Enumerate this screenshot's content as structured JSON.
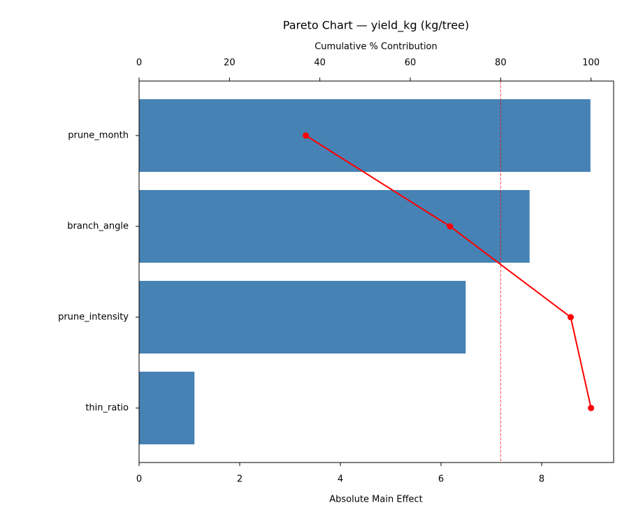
{
  "chart_data": {
    "type": "pareto",
    "title": "Pareto Chart — yield_kg (kg/tree)",
    "xlabel": "Absolute Main Effect",
    "x2label": "Cumulative % Contribution",
    "categories": [
      "prune_month",
      "branch_angle",
      "prune_intensity",
      "thin_ratio"
    ],
    "bars": {
      "values": [
        8.97,
        7.76,
        6.49,
        1.1
      ],
      "color": "#4682b4"
    },
    "cumulative": {
      "values": [
        36.9,
        68.8,
        95.5,
        100
      ],
      "color": "#ff0000"
    },
    "threshold": 80,
    "threshold_color": "#ff0000",
    "xlim": [
      0,
      9.43
    ],
    "xticks": [
      0,
      2,
      4,
      6,
      8
    ],
    "x2lim": [
      0,
      105
    ],
    "x2ticks": [
      0,
      20,
      40,
      60,
      80,
      100
    ]
  }
}
